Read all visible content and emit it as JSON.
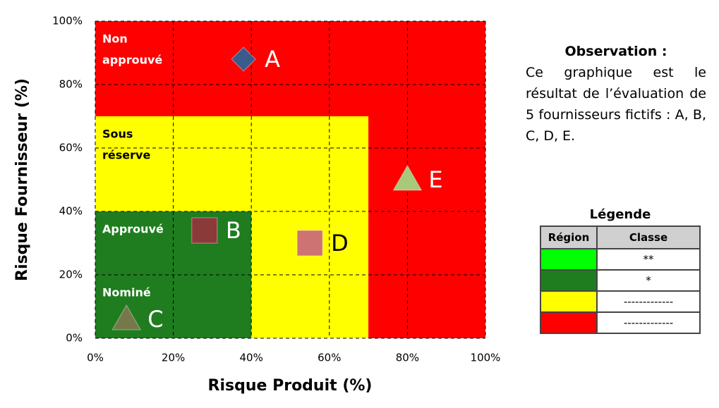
{
  "chart_data": {
    "type": "scatter",
    "x_label": "Risque Produit (%)",
    "y_label": "Risque Fournisseur (%)",
    "xlim": [
      0,
      100
    ],
    "ylim": [
      0,
      100
    ],
    "xticks": [
      {
        "value": 0,
        "label": "0%"
      },
      {
        "value": 20,
        "label": "20%"
      },
      {
        "value": 40,
        "label": "40%"
      },
      {
        "value": 60,
        "label": "60%"
      },
      {
        "value": 80,
        "label": "80%"
      },
      {
        "value": 100,
        "label": "100%"
      }
    ],
    "yticks": [
      {
        "value": 0,
        "label": "0%"
      },
      {
        "value": 20,
        "label": "20%"
      },
      {
        "value": 40,
        "label": "40%"
      },
      {
        "value": 60,
        "label": "60%"
      },
      {
        "value": 80,
        "label": "80%"
      },
      {
        "value": 100,
        "label": "100%"
      }
    ],
    "grid": true,
    "regions": [
      {
        "lines": [
          "Non",
          "approuvé"
        ],
        "color": "#ff0000",
        "x": [
          0,
          100
        ],
        "y": [
          0,
          100
        ]
      },
      {
        "lines": [
          "Sous",
          "réserve"
        ],
        "color": "#ffff00",
        "x": [
          0,
          70
        ],
        "y": [
          0,
          70
        ]
      },
      {
        "lines": [
          "Approuvé"
        ],
        "color": "#1f7d1f",
        "x": [
          0,
          40
        ],
        "y": [
          0,
          40
        ]
      },
      {
        "lines": [
          "Nominé"
        ],
        "color": "#1f7d1f",
        "x": [
          0,
          20
        ],
        "y": [
          0,
          20
        ]
      }
    ],
    "series": [
      {
        "name": "A",
        "color": "#3b5b8c",
        "marker": "diamond",
        "x": [
          38
        ],
        "values": [
          88
        ]
      },
      {
        "name": "B",
        "color": "#8b3a3a",
        "marker": "square",
        "x": [
          28
        ],
        "values": [
          34
        ]
      },
      {
        "name": "C",
        "color": "#77784a",
        "marker": "triangle",
        "x": [
          8
        ],
        "values": [
          6
        ]
      },
      {
        "name": "D",
        "color": "#cd7373",
        "marker": "square",
        "x": [
          55
        ],
        "values": [
          30
        ]
      },
      {
        "name": "E",
        "color": "#a8c87a",
        "marker": "triangle",
        "x": [
          80
        ],
        "values": [
          50
        ]
      }
    ]
  },
  "observation": {
    "title": "Observation :",
    "text": "Ce graphique est le résultat de l’évaluation de 5 fournisseurs fictifs : A, B, C, D, E."
  },
  "legend_table": {
    "title": "Légende",
    "headers": [
      "Région",
      "Classe"
    ],
    "rows": [
      {
        "color": "#00ff00",
        "classe": "**"
      },
      {
        "color": "#1f7d1f",
        "classe": "*"
      },
      {
        "color": "#ffff00",
        "classe": "-------------"
      },
      {
        "color": "#ff0000",
        "classe": "-------------"
      }
    ]
  }
}
